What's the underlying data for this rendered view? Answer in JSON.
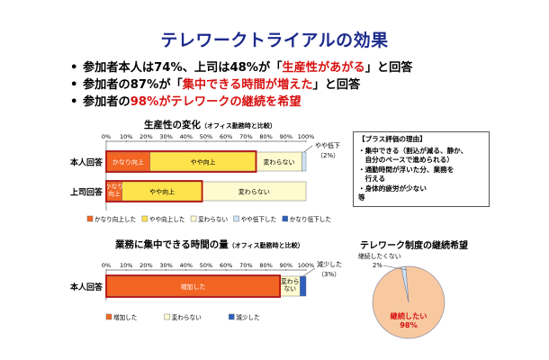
{
  "title": "テレワークトライアルの効果",
  "bullets": [
    {
      "pre": "参加者本人は74%、上司は48%が「",
      "hl": "生産性があがる",
      "post": "」と回答"
    },
    {
      "pre": "参加者の87%が「",
      "hl": "集中できる時間が増えた",
      "post": "」と回答"
    },
    {
      "pre": "参加者の",
      "hl": "98%がテレワークの継続を希望",
      "post": ""
    }
  ],
  "colors": {
    "orange": "#f26522",
    "yellow": "#ffe34d",
    "cream": "#fffbd0",
    "lightblue": "#cfe4f5",
    "blue": "#2e5fbf",
    "title_navy": "#1c2a8c",
    "highlight_red": "#d81010",
    "frame_red": "#b01010",
    "pie_peach": "#f8c9a0"
  },
  "chart_data": [
    {
      "type": "bar",
      "orientation": "horizontal-stacked",
      "title": "生産性の変化",
      "subtitle": "（オフィス勤務時と比較）",
      "xlim": [
        0,
        100
      ],
      "xticks": [
        "0%",
        "10%",
        "20%",
        "30%",
        "40%",
        "50%",
        "60%",
        "70%",
        "80%",
        "90%",
        "100%"
      ],
      "categories": [
        "本人回答",
        "上司回答"
      ],
      "series": [
        {
          "name": "かなり向上した",
          "values": [
            22,
            8
          ],
          "labels": [
            "かなり向上",
            "かなり向上"
          ]
        },
        {
          "name": "やや向上した",
          "values": [
            53,
            40
          ],
          "labels": [
            "やや向上",
            "やや向上"
          ]
        },
        {
          "name": "変わらない",
          "values": [
            23,
            52
          ],
          "labels": [
            "変わらない",
            "変わらない"
          ]
        },
        {
          "name": "やや低下した",
          "values": [
            2,
            0
          ],
          "labels": [
            "",
            ""
          ]
        },
        {
          "name": "かなり低下した",
          "values": [
            0,
            0
          ],
          "labels": [
            "",
            ""
          ]
        }
      ],
      "annotations": [
        {
          "text": "やや低下",
          "text2": "（2%）"
        }
      ],
      "legend_position": "bottom"
    },
    {
      "type": "bar",
      "orientation": "horizontal-stacked",
      "title": "業務に集中できる時間の量",
      "subtitle": "（オフィス勤務時と比較）",
      "xlim": [
        0,
        100
      ],
      "xticks": [
        "0%",
        "10%",
        "20%",
        "30%",
        "40%",
        "50%",
        "60%",
        "70%",
        "80%",
        "90%",
        "100%"
      ],
      "categories": [
        "本人回答"
      ],
      "series": [
        {
          "name": "増加した",
          "values": [
            87
          ],
          "labels": [
            "増加した"
          ]
        },
        {
          "name": "変わらない",
          "values": [
            10
          ],
          "labels": [
            "変わら ない"
          ]
        },
        {
          "name": "減少した",
          "values": [
            3
          ],
          "labels": [
            ""
          ]
        }
      ],
      "annotations": [
        {
          "text": "減少した",
          "text2": "（3%）"
        }
      ],
      "legend_position": "bottom"
    },
    {
      "type": "pie",
      "title": "テレワーク制度の継続希望",
      "slices": [
        {
          "label": "継続したい",
          "value": 98,
          "display": "98%"
        },
        {
          "label": "継続したくない",
          "value": 2,
          "display": "2%"
        }
      ]
    }
  ],
  "plus_box": {
    "title": "【プラス評価の理由】",
    "items": [
      "・集中できる（割込が減る、静か、",
      "　自分のペースで進められる）",
      "・通勤時間が浮いた分、業務を",
      "　行える",
      "・身体的疲労が少ない",
      "等"
    ]
  }
}
